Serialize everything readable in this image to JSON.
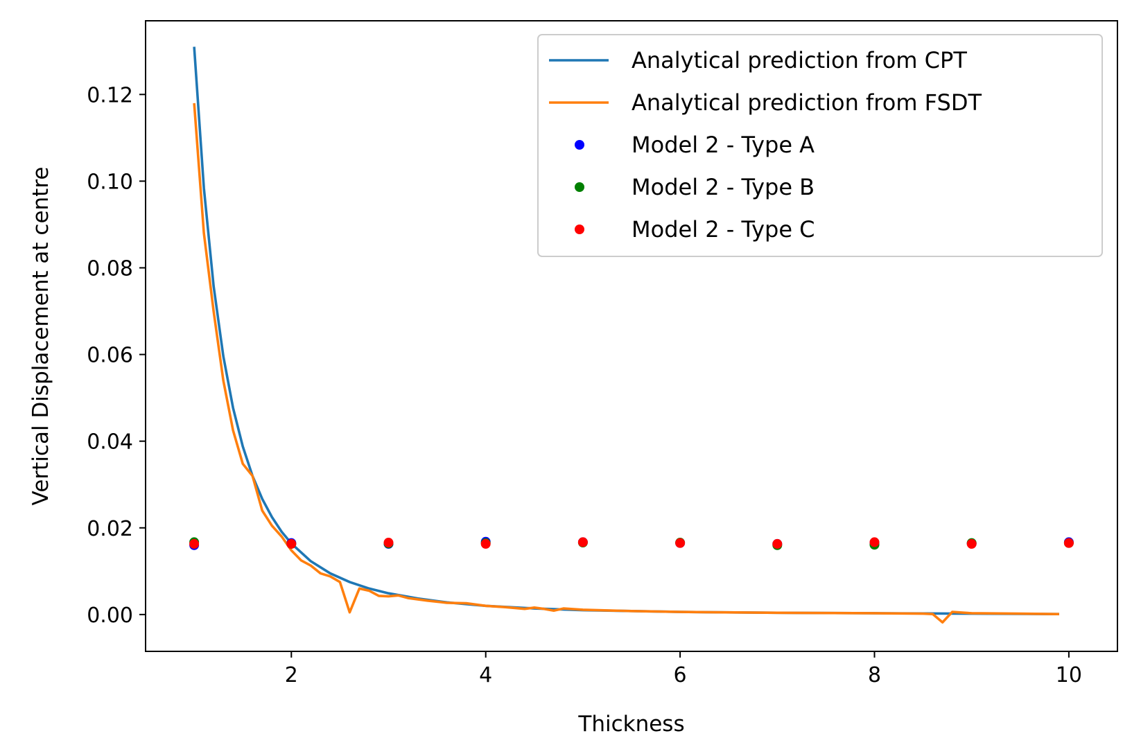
{
  "chart_data": {
    "type": "line",
    "xlabel": "Thickness",
    "ylabel": "Vertical Displacement at centre",
    "xlim": [
      0.5,
      10.5
    ],
    "ylim": [
      -0.0085,
      0.137
    ],
    "xticks": [
      2,
      4,
      6,
      8,
      10
    ],
    "xtick_labels": [
      "2",
      "4",
      "6",
      "8",
      "10"
    ],
    "yticks": [
      0.0,
      0.02,
      0.04,
      0.06,
      0.08,
      0.1,
      0.12
    ],
    "ytick_labels": [
      "0.00",
      "0.02",
      "0.04",
      "0.06",
      "0.08",
      "0.10",
      "0.12"
    ],
    "grid": false,
    "legend_position": "top-right",
    "series": [
      {
        "name": "Analytical prediction from CPT",
        "kind": "line",
        "color": "#1f77b4",
        "x": [
          1.0,
          1.1,
          1.2,
          1.3,
          1.4,
          1.5,
          1.6,
          1.7,
          1.8,
          1.9,
          2.0,
          2.2,
          2.4,
          2.6,
          2.8,
          3.0,
          3.3,
          3.6,
          4.0,
          4.5,
          5.0,
          5.5,
          6.0,
          7.0,
          8.0,
          9.0,
          9.9
        ],
        "y": [
          0.131,
          0.0984,
          0.0758,
          0.0596,
          0.0477,
          0.0388,
          0.032,
          0.0267,
          0.0225,
          0.0191,
          0.0164,
          0.0123,
          0.0095,
          0.0075,
          0.006,
          0.0049,
          0.0037,
          0.0028,
          0.002,
          0.0014,
          0.001,
          0.0008,
          0.0006,
          0.0004,
          0.0003,
          0.0002,
          0.0001
        ]
      },
      {
        "name": "Analytical prediction from FSDT",
        "kind": "line",
        "color": "#ff7f0e",
        "x": [
          1.0,
          1.1,
          1.2,
          1.3,
          1.4,
          1.5,
          1.6,
          1.7,
          1.8,
          1.9,
          2.0,
          2.1,
          2.2,
          2.3,
          2.4,
          2.5,
          2.6,
          2.7,
          2.8,
          2.9,
          3.0,
          3.1,
          3.2,
          3.4,
          3.6,
          3.8,
          4.0,
          4.2,
          4.4,
          4.5,
          4.6,
          4.7,
          4.8,
          5.0,
          5.5,
          6.0,
          7.0,
          8.0,
          8.5,
          8.6,
          8.7,
          8.8,
          9.0,
          9.5,
          9.9
        ],
        "y": [
          0.118,
          0.088,
          0.07,
          0.054,
          0.0425,
          0.0348,
          0.032,
          0.024,
          0.0205,
          0.018,
          0.0148,
          0.0125,
          0.0113,
          0.0095,
          0.0088,
          0.0075,
          0.0005,
          0.006,
          0.0055,
          0.0043,
          0.0042,
          0.0044,
          0.0038,
          0.0032,
          0.0027,
          0.0026,
          0.002,
          0.0017,
          0.0013,
          0.0016,
          0.0013,
          0.0009,
          0.0014,
          0.0011,
          0.0008,
          0.0006,
          0.0004,
          0.0003,
          0.0002,
          0.0001,
          -0.0018,
          0.0006,
          0.0003,
          0.0002,
          0.0001
        ]
      },
      {
        "name": "Model 2 - Type A",
        "kind": "scatter",
        "color": "#0000ff",
        "x": [
          1,
          2,
          3,
          4,
          5,
          6,
          7,
          8,
          9,
          10
        ],
        "y": [
          0.016,
          0.0165,
          0.0163,
          0.0168,
          0.0167,
          0.0165,
          0.0163,
          0.0165,
          0.0164,
          0.0167
        ]
      },
      {
        "name": "Model 2 - Type B",
        "kind": "scatter",
        "color": "#008000",
        "x": [
          1,
          2,
          3,
          4,
          5,
          6,
          7,
          8,
          9,
          10
        ],
        "y": [
          0.0167,
          0.0163,
          0.0164,
          0.0165,
          0.0166,
          0.0166,
          0.016,
          0.0161,
          0.0165,
          0.0165
        ]
      },
      {
        "name": "Model 2 - Type C",
        "kind": "scatter",
        "color": "#ff0000",
        "x": [
          1,
          2,
          3,
          4,
          5,
          6,
          7,
          8,
          9,
          10
        ],
        "y": [
          0.0163,
          0.0163,
          0.0166,
          0.0163,
          0.0167,
          0.0165,
          0.0163,
          0.0167,
          0.0163,
          0.0165
        ]
      }
    ]
  }
}
